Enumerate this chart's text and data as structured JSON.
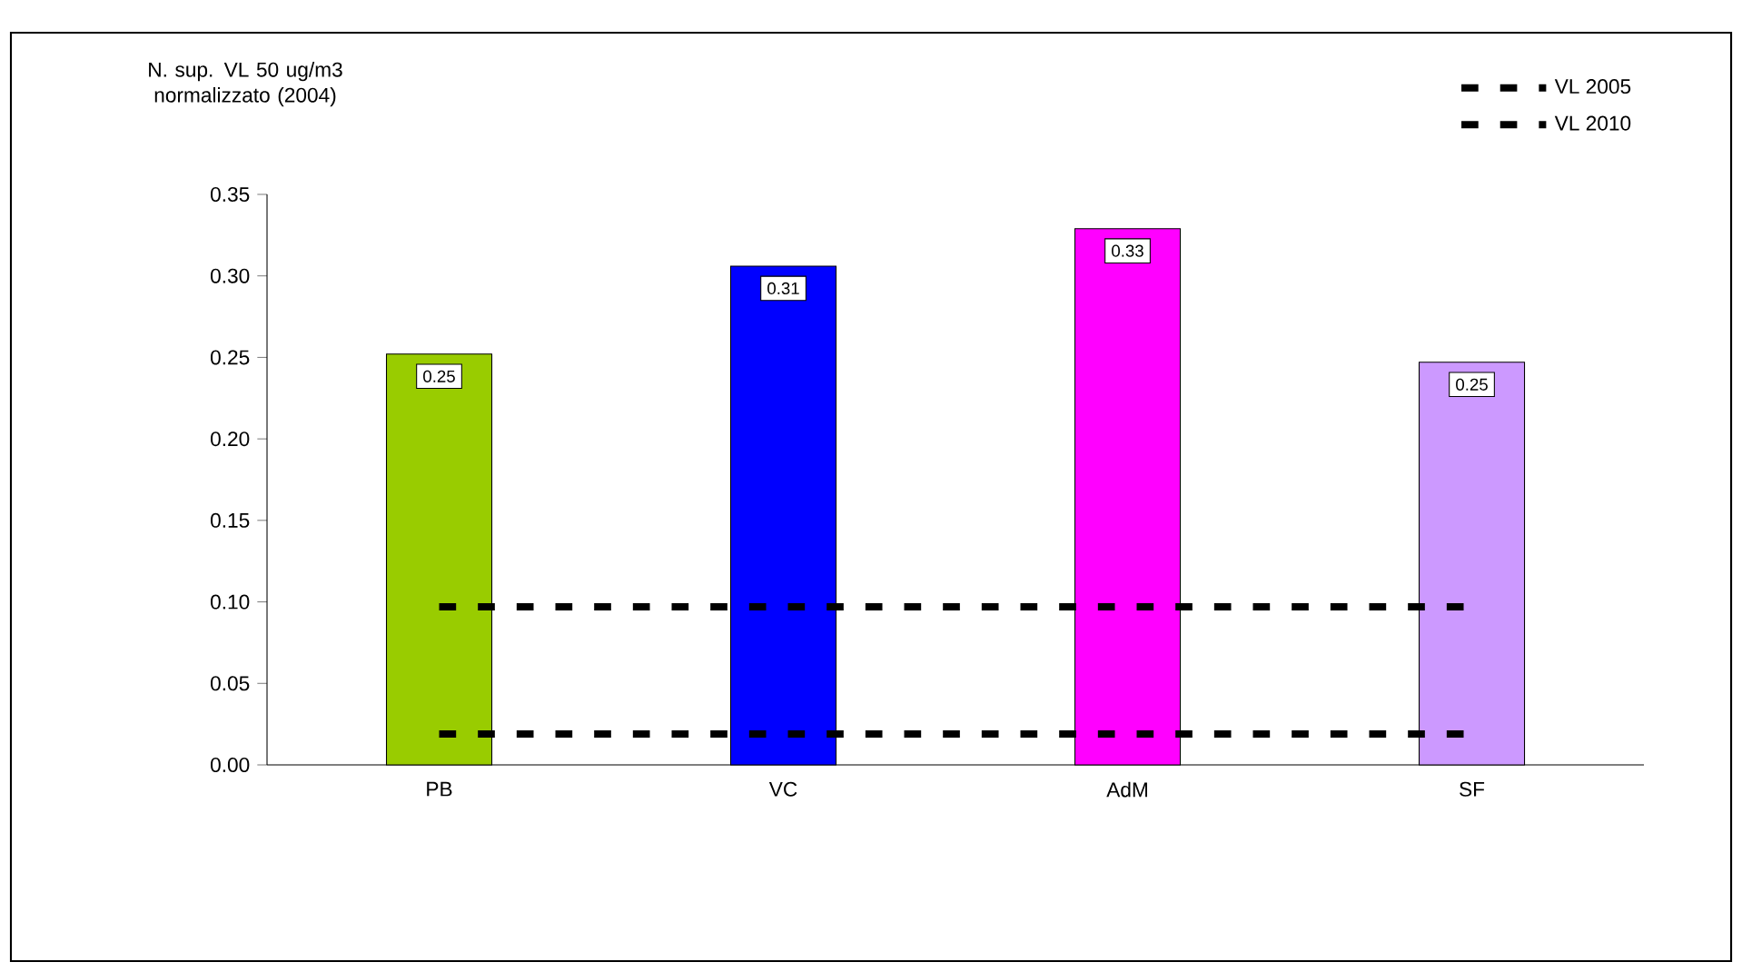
{
  "chart_data": {
    "type": "bar",
    "ylabel": "N. sup. VL 50 ug/m3 normalizzato (2004)",
    "categories": [
      "PB",
      "VC",
      "AdM",
      "SF"
    ],
    "series": [
      {
        "values": [
          0.252,
          0.306,
          0.329,
          0.247
        ],
        "colors": [
          "#99cc00",
          "#0000ff",
          "#ff00ff",
          "#cc99ff"
        ],
        "value_labels": [
          "0.25",
          "0.31",
          "0.33",
          "0.25"
        ]
      },
      {
        "type": "line",
        "name": "VL 2005",
        "color": "#000000",
        "line_style": "dashed",
        "values": [
          0.097,
          0.097,
          0.097,
          0.097
        ]
      },
      {
        "type": "line",
        "name": "VL 2010",
        "color": "#000000",
        "line_style": "dashed",
        "values": [
          0.019,
          0.019,
          0.019,
          0.019
        ]
      }
    ],
    "ylim": [
      0,
      0.35
    ],
    "yticks": [
      {
        "value": 0,
        "label": "0.00"
      },
      {
        "value": 0.05,
        "label": "0.05"
      },
      {
        "value": 0.1,
        "label": "0.10"
      },
      {
        "value": 0.15,
        "label": "0.15"
      },
      {
        "value": 0.2,
        "label": "0.20"
      },
      {
        "value": 0.25,
        "label": "0.25"
      },
      {
        "value": 0.3,
        "label": "0.30"
      },
      {
        "value": 0.35,
        "label": "0.35"
      }
    ],
    "grid": false,
    "legend": "top right",
    "marker": "none"
  }
}
